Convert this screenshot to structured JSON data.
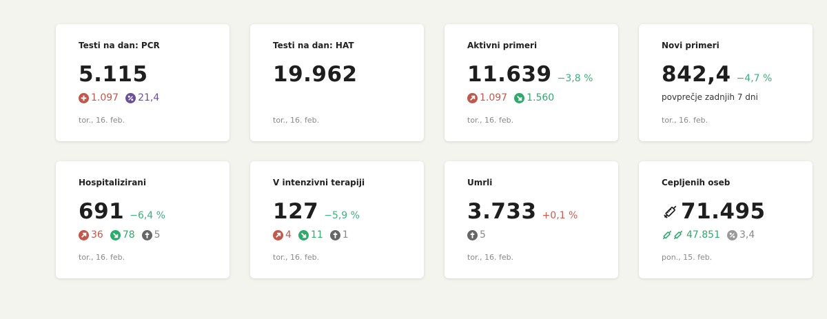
{
  "cards": [
    {
      "title": "Testi na dan: PCR",
      "value": "5.115",
      "plus": "1.097",
      "percent": "21,4",
      "date": "tor., 16. feb."
    },
    {
      "title": "Testi na dan: HAT",
      "value": "19.962",
      "date": "tor., 16. feb."
    },
    {
      "title": "Aktivni primeri",
      "value": "11.639",
      "delta": "−3,8 %",
      "in": "1.097",
      "out": "1.560",
      "date": "tor., 16. feb."
    },
    {
      "title": "Novi primeri",
      "value": "842,4",
      "delta": "−4,7 %",
      "note": "povprečje zadnjih 7 dni",
      "date": "tor., 16. feb."
    },
    {
      "title": "Hospitalizirani",
      "value": "691",
      "delta": "−6,4 %",
      "in": "36",
      "out": "78",
      "died": "5",
      "date": "tor., 16. feb."
    },
    {
      "title": "V intenzivni terapiji",
      "value": "127",
      "delta": "−5,9 %",
      "in": "4",
      "out": "11",
      "died": "1",
      "date": "tor., 16. feb."
    },
    {
      "title": "Umrli",
      "value": "3.733",
      "delta": "+0,1 %",
      "died": "5",
      "date": "tor., 16. feb."
    },
    {
      "title": "Cepljenih oseb",
      "value": "71.495",
      "second_dose": "47.851",
      "percent": "3,4",
      "date": "pon., 15. feb."
    }
  ],
  "colors": {
    "increase": "#c2574b",
    "decrease": "#2eaa6a",
    "percent": "#6a4f9a",
    "neutral": "#888888"
  }
}
